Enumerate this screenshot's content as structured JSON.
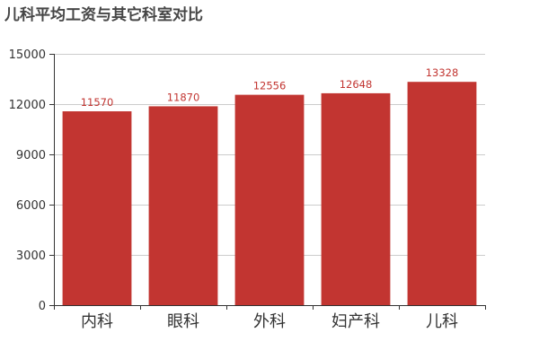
{
  "chart_data": {
    "type": "bar",
    "title": "儿科平均工资与其它科室对比",
    "categories": [
      "内科",
      "眼科",
      "外科",
      "妇产科",
      "儿科"
    ],
    "values": [
      11570,
      11870,
      12556,
      12648,
      13328
    ],
    "ylim": [
      0,
      15000
    ],
    "yticks": [
      0,
      3000,
      6000,
      9000,
      12000,
      15000
    ],
    "xlabel": "",
    "ylabel": "",
    "grid": true,
    "legend": "none",
    "data_labels": true,
    "bar_color": "#c23531",
    "label_color": "#c23531",
    "axis_color": "#333333",
    "grid_color": "#cccccc"
  }
}
